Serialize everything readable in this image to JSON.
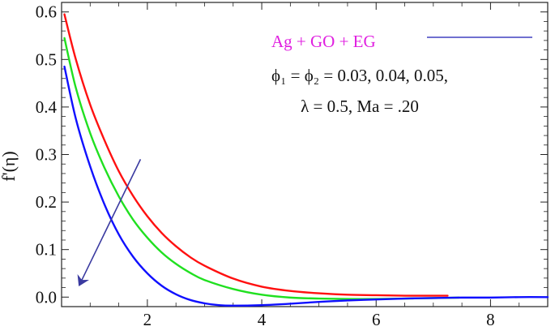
{
  "chart_data": {
    "type": "line",
    "title": "",
    "xlabel": "",
    "ylabel": "f'(η)",
    "xlim": [
      0.5,
      9.0
    ],
    "ylim": [
      -0.02,
      0.62
    ],
    "x_ticks": [
      2,
      4,
      6,
      8
    ],
    "x_tick_labels": [
      "2",
      "4",
      "6",
      "8"
    ],
    "y_ticks": [
      0.0,
      0.1,
      0.2,
      0.3,
      0.4,
      0.5,
      0.6
    ],
    "y_tick_labels": [
      "0.0",
      "0.1",
      "0.2",
      "0.3",
      "0.4",
      "0.5",
      "0.6"
    ],
    "grid": false,
    "legend": {
      "placement": "top-right",
      "entries": [
        {
          "label": "Ag + GO + EG",
          "color": "#e020e0",
          "line_color": "#4040c0"
        }
      ]
    },
    "annotations": {
      "line1": "ϕ₁ = ϕ₂ = 0.03, 0.04, 0.05,",
      "line2": "λ = 0.5, Ma = .20"
    },
    "arrow": {
      "meaning": "increasing ϕ₁ = ϕ₂",
      "from": [
        1.88,
        0.29
      ],
      "to": [
        0.83,
        0.03
      ],
      "color": "#3a3aa0"
    },
    "series": [
      {
        "color": "#ff1010",
        "x": [
          0.55,
          0.75,
          1.0,
          1.25,
          1.5,
          1.75,
          2.0,
          2.25,
          2.5,
          2.75,
          3.0,
          3.5,
          4.0,
          4.5,
          5.0,
          5.5,
          6.0,
          6.5,
          7.0,
          7.25
        ],
        "y": [
          0.595,
          0.5,
          0.405,
          0.33,
          0.265,
          0.213,
          0.17,
          0.135,
          0.107,
          0.084,
          0.066,
          0.039,
          0.022,
          0.013,
          0.008,
          0.005,
          0.004,
          0.003,
          0.003,
          0.003
        ]
      },
      {
        "color": "#20e020",
        "x": [
          0.55,
          0.75,
          1.0,
          1.25,
          1.5,
          1.75,
          2.0,
          2.25,
          2.5,
          2.75,
          3.0,
          3.5,
          4.0,
          4.5,
          5.0,
          5.5,
          6.0,
          6.5,
          7.0,
          7.45
        ],
        "y": [
          0.545,
          0.44,
          0.345,
          0.272,
          0.212,
          0.163,
          0.125,
          0.094,
          0.07,
          0.051,
          0.036,
          0.017,
          0.005,
          -0.001,
          -0.003,
          -0.004,
          -0.004,
          -0.003,
          -0.002,
          -0.001
        ]
      },
      {
        "color": "#1010ff",
        "x": [
          0.55,
          0.75,
          1.0,
          1.25,
          1.5,
          1.75,
          2.0,
          2.25,
          2.5,
          2.75,
          3.0,
          3.25,
          3.5,
          4.0,
          4.5,
          5.0,
          5.5,
          6.0,
          6.5,
          7.0,
          7.5,
          8.0,
          8.5,
          9.0
        ],
        "y": [
          0.485,
          0.375,
          0.275,
          0.195,
          0.132,
          0.085,
          0.05,
          0.024,
          0.006,
          -0.006,
          -0.013,
          -0.017,
          -0.018,
          -0.017,
          -0.014,
          -0.01,
          -0.007,
          -0.005,
          -0.003,
          -0.002,
          -0.001,
          -0.001,
          0.0,
          0.0
        ]
      }
    ]
  }
}
